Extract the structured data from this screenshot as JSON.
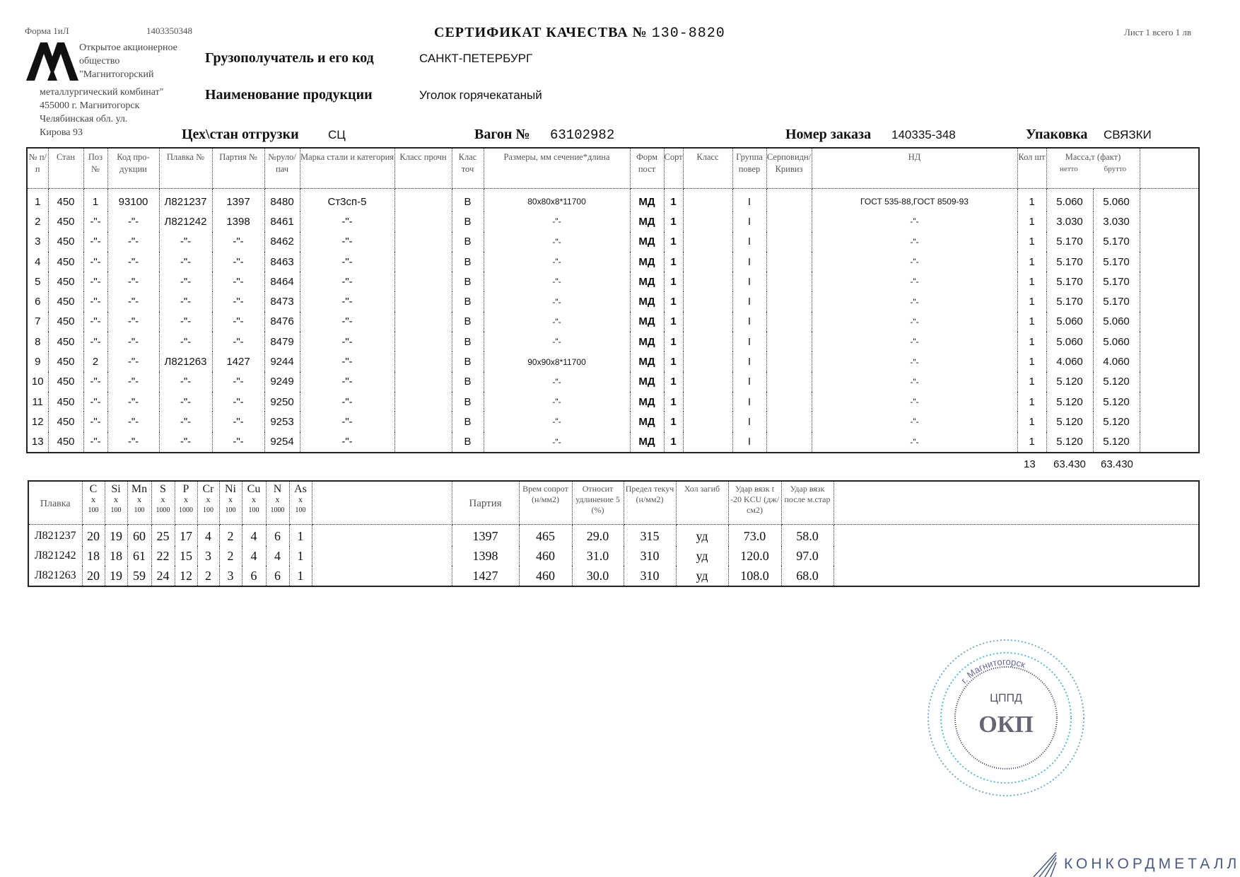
{
  "header": {
    "form_label": "Форма 1иЛ",
    "form_code": "1403350348",
    "title": "СЕРТИФИКАТ КАЧЕСТВА №",
    "certificate_number": "130-8820",
    "sheet_info": "Лист 1 всего 1 лв",
    "company_lines": [
      "Открытое акционерное",
      "общество",
      "\"Магнитогорский"
    ],
    "company_lines2": [
      "металлургический комбинат\"",
      "455000 г. Магнитогорск",
      "Челябинская обл.  ул.",
      "Кирова 93"
    ],
    "consignee_label": "Грузополучатель и его код",
    "consignee_value": "САНКТ-ПЕТЕРБУРГ",
    "product_label": "Наименование продукции",
    "product_value": "Уголок горячекатаный",
    "shop_label": "Цех\\стан отгрузки",
    "shop_value": "СЦ",
    "wagon_label": "Вагон №",
    "wagon_value": "63102982",
    "order_label": "Номер заказа",
    "order_value": "140335-348",
    "packing_label": "Упаковка",
    "packing_value": "СВЯЗКИ"
  },
  "main_table": {
    "columns": [
      "№ п/п",
      "Стан",
      "Поз №",
      "Код про-дукции",
      "Плавка №",
      "Партия №",
      "№руло/пач",
      "Марка стали и категория",
      "Класс прочн",
      "Клас точ",
      "Размеры, мм сечение*длина",
      "Форм пост",
      "Сорт",
      "Класс",
      "Группа повер",
      "Серповидн/Кривиз",
      "НД",
      "Кол шт",
      "Масса,т (факт)"
    ],
    "mass_sub": [
      "нетто",
      "брутто"
    ],
    "rows": [
      [
        "1",
        "450",
        "1",
        "93100",
        "Л821237",
        "1397",
        "8480",
        "Ст3сп-5",
        "",
        "В",
        "80x80x8*11700",
        "МД",
        "1",
        "",
        "I",
        "",
        "ГОСТ 535-88,ГОСТ 8509-93",
        "1",
        "5.060",
        "5.060"
      ],
      [
        "2",
        "450",
        "-\"-",
        "-\"-",
        "Л821242",
        "1398",
        "8461",
        "-\"-",
        "",
        "В",
        "-\"-",
        "МД",
        "1",
        "",
        "I",
        "",
        "-\"-",
        "1",
        "3.030",
        "3.030"
      ],
      [
        "3",
        "450",
        "-\"-",
        "-\"-",
        "-\"-",
        "-\"-",
        "8462",
        "-\"-",
        "",
        "В",
        "-\"-",
        "МД",
        "1",
        "",
        "I",
        "",
        "-\"-",
        "1",
        "5.170",
        "5.170"
      ],
      [
        "4",
        "450",
        "-\"-",
        "-\"-",
        "-\"-",
        "-\"-",
        "8463",
        "-\"-",
        "",
        "В",
        "-\"-",
        "МД",
        "1",
        "",
        "I",
        "",
        "-\"-",
        "1",
        "5.170",
        "5.170"
      ],
      [
        "5",
        "450",
        "-\"-",
        "-\"-",
        "-\"-",
        "-\"-",
        "8464",
        "-\"-",
        "",
        "В",
        "-\"-",
        "МД",
        "1",
        "",
        "I",
        "",
        "-\"-",
        "1",
        "5.170",
        "5.170"
      ],
      [
        "6",
        "450",
        "-\"-",
        "-\"-",
        "-\"-",
        "-\"-",
        "8473",
        "-\"-",
        "",
        "В",
        "-\"-",
        "МД",
        "1",
        "",
        "I",
        "",
        "-\"-",
        "1",
        "5.170",
        "5.170"
      ],
      [
        "7",
        "450",
        "-\"-",
        "-\"-",
        "-\"-",
        "-\"-",
        "8476",
        "-\"-",
        "",
        "В",
        "-\"-",
        "МД",
        "1",
        "",
        "I",
        "",
        "-\"-",
        "1",
        "5.060",
        "5.060"
      ],
      [
        "8",
        "450",
        "-\"-",
        "-\"-",
        "-\"-",
        "-\"-",
        "8479",
        "-\"-",
        "",
        "В",
        "-\"-",
        "МД",
        "1",
        "",
        "I",
        "",
        "-\"-",
        "1",
        "5.060",
        "5.060"
      ],
      [
        "9",
        "450",
        "2",
        "-\"-",
        "Л821263",
        "1427",
        "9244",
        "-\"-",
        "",
        "В",
        "90x90x8*11700",
        "МД",
        "1",
        "",
        "I",
        "",
        "-\"-",
        "1",
        "4.060",
        "4.060"
      ],
      [
        "10",
        "450",
        "-\"-",
        "-\"-",
        "-\"-",
        "-\"-",
        "9249",
        "-\"-",
        "",
        "В",
        "-\"-",
        "МД",
        "1",
        "",
        "I",
        "",
        "-\"-",
        "1",
        "5.120",
        "5.120"
      ],
      [
        "11",
        "450",
        "-\"-",
        "-\"-",
        "-\"-",
        "-\"-",
        "9250",
        "-\"-",
        "",
        "В",
        "-\"-",
        "МД",
        "1",
        "",
        "I",
        "",
        "-\"-",
        "1",
        "5.120",
        "5.120"
      ],
      [
        "12",
        "450",
        "-\"-",
        "-\"-",
        "-\"-",
        "-\"-",
        "9253",
        "-\"-",
        "",
        "В",
        "-\"-",
        "МД",
        "1",
        "",
        "I",
        "",
        "-\"-",
        "1",
        "5.120",
        "5.120"
      ],
      [
        "13",
        "450",
        "-\"-",
        "-\"-",
        "-\"-",
        "-\"-",
        "9254",
        "-\"-",
        "",
        "В",
        "-\"-",
        "МД",
        "1",
        "",
        "I",
        "",
        "-\"-",
        "1",
        "5.120",
        "5.120"
      ]
    ],
    "totals": {
      "count": "13",
      "net": "63.430",
      "gross": "63.430"
    }
  },
  "chem_table": {
    "heat_label": "Плавка",
    "elements": [
      {
        "el": "C",
        "mul": "x",
        "unit": "100"
      },
      {
        "el": "Si",
        "mul": "x",
        "unit": "100"
      },
      {
        "el": "Mn",
        "mul": "x",
        "unit": "100"
      },
      {
        "el": "S",
        "mul": "x",
        "unit": "1000"
      },
      {
        "el": "P",
        "mul": "x",
        "unit": "1000"
      },
      {
        "el": "Cr",
        "mul": "x",
        "unit": "100"
      },
      {
        "el": "Ni",
        "mul": "x",
        "unit": "100"
      },
      {
        "el": "Cu",
        "mul": "x",
        "unit": "100"
      },
      {
        "el": "N",
        "mul": "x",
        "unit": "1000"
      },
      {
        "el": "As",
        "mul": "x",
        "unit": "100"
      }
    ],
    "mech_columns": [
      "Партия",
      "Врем сопрот (н/мм2)",
      "Относит удлинение 5 (%)",
      "Предел текуч (н/мм2)",
      "Хол загиб",
      "Удар вязк t -20 KCU (дж/см2)",
      "Удар вязк после м.стар"
    ],
    "rows": [
      {
        "heat": "Л821237",
        "chem": [
          "20",
          "19",
          "60",
          "25",
          "17",
          "4",
          "2",
          "4",
          "6",
          "1"
        ],
        "mech": [
          "1397",
          "465",
          "29.0",
          "315",
          "уд",
          "73.0",
          "58.0"
        ]
      },
      {
        "heat": "Л821242",
        "chem": [
          "18",
          "18",
          "61",
          "22",
          "15",
          "3",
          "2",
          "4",
          "4",
          "1"
        ],
        "mech": [
          "1398",
          "460",
          "31.0",
          "310",
          "уд",
          "120.0",
          "97.0"
        ]
      },
      {
        "heat": "Л821263",
        "chem": [
          "20",
          "19",
          "59",
          "24",
          "12",
          "2",
          "3",
          "6",
          "6",
          "1"
        ],
        "mech": [
          "1427",
          "460",
          "30.0",
          "310",
          "уд",
          "108.0",
          "68.0"
        ]
      }
    ]
  },
  "stamp": {
    "top_text": "ЦППД",
    "main_text": "ОКП",
    "ring_text": "г. Магнитогорск"
  },
  "watermark": {
    "brand": "КОНКОРДМЕТАЛЛ",
    "color": "#4a5a80"
  }
}
